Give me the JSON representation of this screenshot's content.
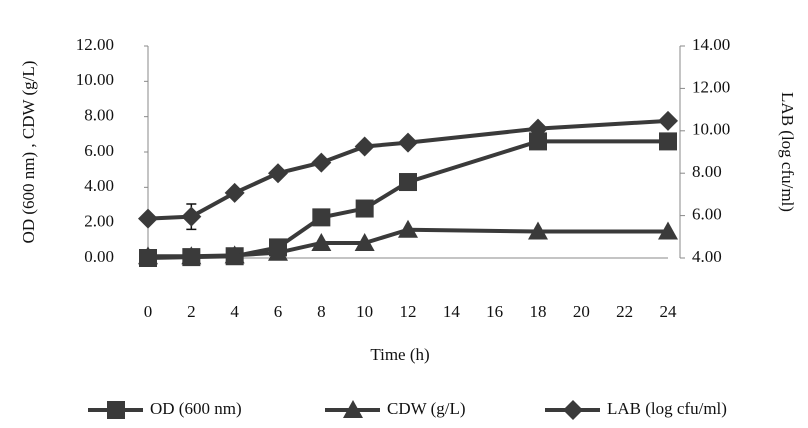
{
  "chart_data": {
    "type": "line",
    "x_label": "Time (h)",
    "y_label": "OD (600 nm) , CDW (g/L)",
    "y2_label": "LAB (log cfu/ml)",
    "x": [
      0,
      2,
      4,
      6,
      8,
      10,
      12,
      18,
      24
    ],
    "xlim": [
      0,
      24
    ],
    "xticks": [
      0,
      2,
      4,
      6,
      8,
      10,
      12,
      14,
      16,
      18,
      20,
      22,
      24
    ],
    "ylim": [
      0,
      12
    ],
    "yticks": [
      {
        "value": 0,
        "label": "0.00"
      },
      {
        "value": 2,
        "label": "2.00"
      },
      {
        "value": 4,
        "label": "4.00"
      },
      {
        "value": 6,
        "label": "6.00"
      },
      {
        "value": 8,
        "label": "8.00"
      },
      {
        "value": 10,
        "label": "10.00"
      },
      {
        "value": 12,
        "label": "12.00"
      }
    ],
    "y2lim": [
      4,
      14
    ],
    "y2ticks": [
      {
        "value": 4,
        "label": "4.00"
      },
      {
        "value": 6,
        "label": "6.00"
      },
      {
        "value": 8,
        "label": "8.00"
      },
      {
        "value": 10,
        "label": "10.00"
      },
      {
        "value": 12,
        "label": "12.00"
      },
      {
        "value": 14,
        "label": "14.00"
      }
    ],
    "legend": "bottom",
    "series": [
      {
        "name": "OD (600 nm)",
        "color": "#3a3a3a",
        "marker": "square",
        "values": [
          0.0,
          0.05,
          0.1,
          0.6,
          2.3,
          2.8,
          4.3,
          6.6,
          6.6
        ]
      },
      {
        "name": "CDW (g/L)",
        "color": "#3a3a3a",
        "marker": "triangle",
        "values": [
          0.1,
          0.1,
          0.15,
          0.3,
          0.85,
          0.85,
          1.6,
          1.5,
          1.5
        ]
      },
      {
        "name": "LAB (log cfu/ml)",
        "color": "#3a3a3a",
        "marker": "diamond",
        "axis": "y2",
        "values": [
          5.86,
          5.95,
          7.07,
          8.0,
          8.5,
          9.26,
          9.44,
          10.1,
          10.47
        ],
        "errors": [
          null,
          0.6,
          null,
          null,
          null,
          null,
          null,
          null,
          null
        ]
      }
    ]
  }
}
